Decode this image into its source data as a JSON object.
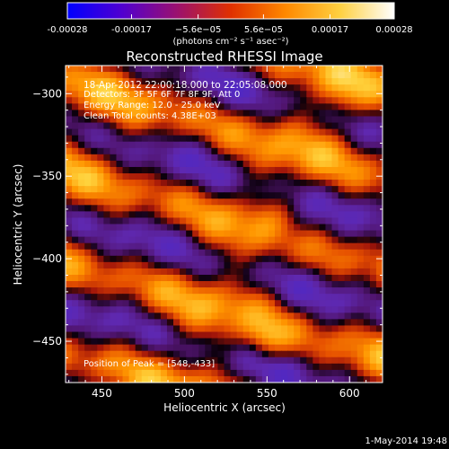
{
  "colorbar": {
    "tick_values": [
      -0.00028,
      -0.00017,
      -5.6e-05,
      5.6e-05,
      0.00017,
      0.00028
    ],
    "tick_labels": [
      "-0.00028",
      "-0.00017",
      "−5.6e−05",
      "5.6e−05",
      "0.00017",
      "0.00028"
    ],
    "range": [
      -0.00028,
      0.00028
    ],
    "units_label": "(photons cm⁻² s⁻¹ asec⁻²)",
    "colors": [
      "#0000ff",
      "#5000d0",
      "#9a1070",
      "#e03000",
      "#ff8800",
      "#ffd040",
      "#ffffff"
    ]
  },
  "chart_data": {
    "type": "heatmap",
    "title": "Reconstructed RHESSI Image",
    "xlabel": "Heliocentric X (arcsec)",
    "ylabel": "Heliocentric Y (arcsec)",
    "xlim": [
      428,
      620
    ],
    "ylim": [
      -475,
      -283
    ],
    "x_ticks": [
      450,
      500,
      550,
      600
    ],
    "y_ticks": [
      -450,
      -400,
      -350,
      -300
    ],
    "x_tick_labels": [
      "450",
      "500",
      "550",
      "600"
    ],
    "y_tick_labels": [
      "−450",
      "−400",
      "−350",
      "−300"
    ],
    "peak": [
      548,
      -433
    ],
    "annotations": [
      "18-Apr-2012 22:00:18.000 to 22:05:08.000",
      "Detectors: 3F 5F 6F 7F 8F 9F, Att 0",
      "Energy Range: 12.0 - 25.0 keV",
      "Clean     Total counts: 4.38E+03"
    ],
    "peak_label": "Position of Peak = [548,-433]",
    "footer": "1-May-2014 19:48"
  }
}
